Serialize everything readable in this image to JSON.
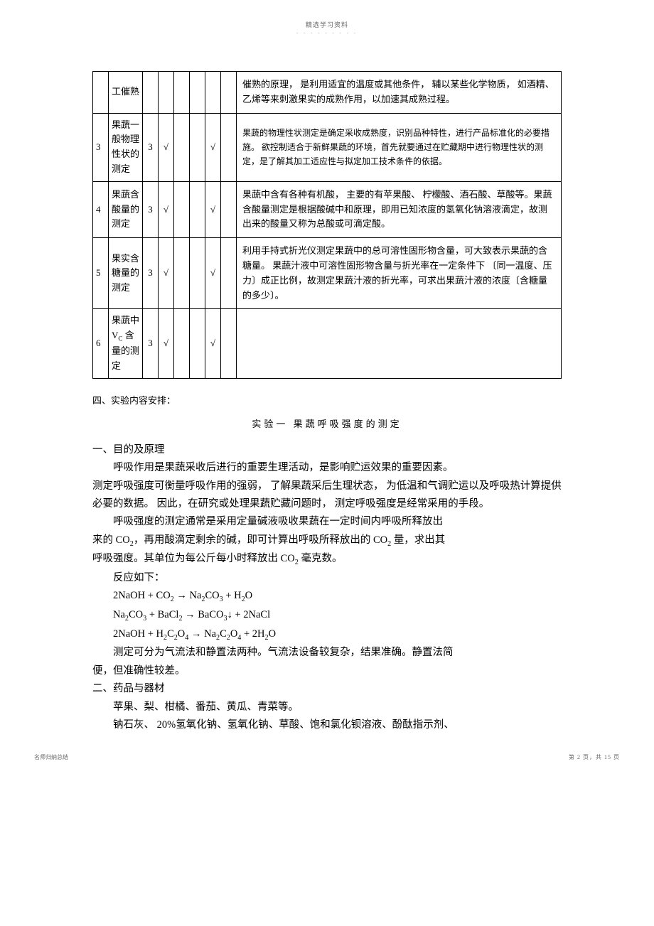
{
  "header": {
    "top": "精选学习资料",
    "sub": "- - - - - - - - -"
  },
  "table": {
    "rows": [
      {
        "idx": "",
        "name": "工催熟",
        "hours": "",
        "c1": "",
        "c2": "",
        "c3": "",
        "c4": "",
        "c5": "",
        "desc": "催熟的原理， 是利用适宜的温度或其他条件，  辅以某些化学物质， 如酒精、 乙烯等来刺激果实的成熟作用，以加速其成熟过程。",
        "small": false
      },
      {
        "idx": "3",
        "name": "果蔬一般物理性状的测定",
        "hours": "3",
        "c1": "√",
        "c2": "",
        "c3": "",
        "c4": "√",
        "c5": "",
        "desc": "果蔬的物理性状测定是确定采收成熟度，识别品种特性，进行产品标准化的必要措施。  欲控制适合于新鲜果蔬的环境，首先就要通过在贮藏期中进行物理性状的测定，是了解其加工适应性与拟定加工技术条件的依据。",
        "small": true
      },
      {
        "idx": "4",
        "name": "果蔬含酸量的测定",
        "hours": "3",
        "c1": "√",
        "c2": "",
        "c3": "",
        "c4": "√",
        "c5": "",
        "desc": "果蔬中含有各种有机酸， 主要的有苹果酸、 柠檬酸、酒石酸、草酸等。果蔬含酸量测定是根据酸碱中和原理，即用已知浓度的氢氧化钠溶液滴定，故测出来的酸量又称为总酸或可滴定酸。",
        "small": false
      },
      {
        "idx": "5",
        "name": "果实含糖量的测定",
        "hours": "3",
        "c1": "√",
        "c2": "",
        "c3": "",
        "c4": "√",
        "c5": "",
        "desc": "利用手持式折光仪测定果蔬中的总可溶性固形物含量，可大致表示果蔬的含糖量。 果蔬汁液中可溶性固形物含量与折光率在一定条件下 〔同一温度、压力〕成正比例，故测定果蔬汁液的折光率，可求出果蔬汁液的浓度〔含糖量的多少〕。",
        "small": false
      },
      {
        "idx": "6",
        "name_html": "果蔬中 V<span class=\"sub\">C</span> 含量的测定",
        "hours": "3",
        "c1": "√",
        "c2": "",
        "c3": "",
        "c4": "√",
        "c5": "",
        "desc": "",
        "small": false
      }
    ]
  },
  "sections": {
    "h4": "四、实验内容安排：",
    "exp_title": "实验一    果蔬呼吸强度的测定",
    "h1": "一、目的及原理",
    "p1": "呼吸作用是果蔬采收后进行的重要生理活动，是影响贮运效果的重要因素。",
    "p2": "测定呼吸强度可衡量呼吸作用的强弱， 了解果蔬采后生理状态， 为低温和气调贮运以及呼吸热计算提供必要的数据。  因此，在研究或处理果蔬贮藏问题时，  测定呼吸强度是经常采用的手段。",
    "p3a": "呼吸强度的测定通常是采用定量碱液吸收果蔬在一定时间内呼吸所释放出",
    "p3b_pre": "来的 CO",
    "p3b_mid": "，再用酸滴定剩余的碱，即可计算出呼吸所释放出的    CO",
    "p3b_post": " 量，求出其",
    "p3c_pre": "呼吸强度。其单位为每公斤每小时释放出    CO",
    "p3c_post": " 毫克数。",
    "react_label": "反应如下：",
    "eq1_a": "2NaOH + CO",
    "eq1_b": " → Na",
    "eq1_c": "CO",
    "eq1_d": " + H",
    "eq1_e": "O",
    "eq2_a": "Na",
    "eq2_b": "CO",
    "eq2_c": " + BaCl",
    "eq2_d": " → BaCO",
    "eq2_e": "↓  + 2NaCl",
    "eq3_a": "2NaOH + H",
    "eq3_b": "C",
    "eq3_c": "O",
    "eq3_d": " → Na",
    "eq3_e": "C",
    "eq3_f": "O",
    "eq3_g": " + 2H",
    "eq3_h": "O",
    "p4a": "测定可分为气流法和静置法两种。气流法设备较复杂，结果准确。静置法简",
    "p4b": "便，但准确性较差。",
    "h2": "二、药品与器材",
    "p5": "苹果、梨、柑橘、番茄、黄瓜、青菜等。",
    "p6": "钠石灰、 20%氢氧化钠、氢氧化钠、草酸、饱和氯化钡溶液、酚酞指示剂、"
  },
  "footer": {
    "left": "名师归纳总结",
    "right": "第 2 页，共 15 页"
  }
}
